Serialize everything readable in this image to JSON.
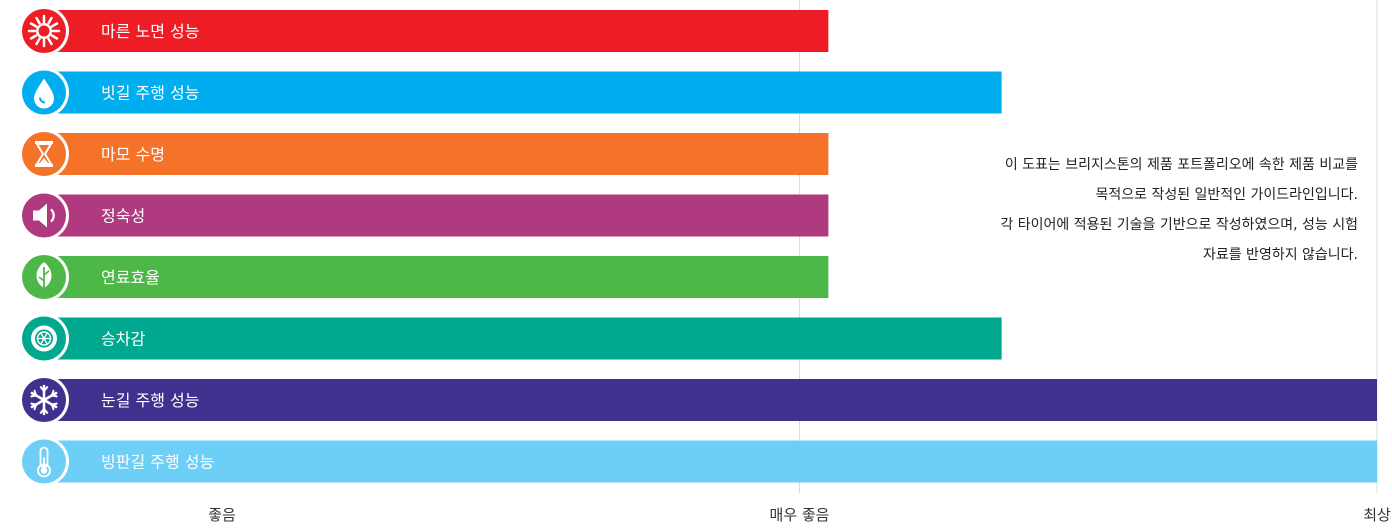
{
  "chart_data": {
    "type": "bar",
    "orientation": "horizontal",
    "categories": [
      "마른 노면 성능",
      "빗길 주행 성능",
      "마모 수명",
      "정숙성",
      "연료효율",
      "승차감",
      "눈길 주행 성능",
      "빙판길 주행 성능"
    ],
    "values": [
      1.05,
      1.35,
      1.05,
      1.05,
      1.05,
      1.35,
      2.0,
      2.0
    ],
    "bar_colors": [
      "#ee1c25",
      "#00adee",
      "#f47328",
      "#af3a80",
      "#4db847",
      "#00a88f",
      "#3f318e",
      "#6dcff6"
    ],
    "icons": [
      "sun-icon",
      "water-drop-icon",
      "hourglass-icon",
      "speaker-icon",
      "leaf-icon",
      "tire-icon",
      "snowflake-icon",
      "thermometer-icon"
    ],
    "xticks": [
      0,
      1,
      2
    ],
    "xtick_labels": [
      "좋음",
      "매우 좋음",
      "최상"
    ],
    "xlim": [
      0,
      2
    ],
    "grid": true
  },
  "note": [
    "이 도표는 브리지스톤의 제품 포트폴리오에 속한 제품 비교를",
    "목적으로 작성된 일반적인 가이드라인입니다.",
    "각 타이어에 적용된 기술을 기반으로 작성하였으며, 성능 시험",
    "자료를 반영하지 않습니다."
  ]
}
